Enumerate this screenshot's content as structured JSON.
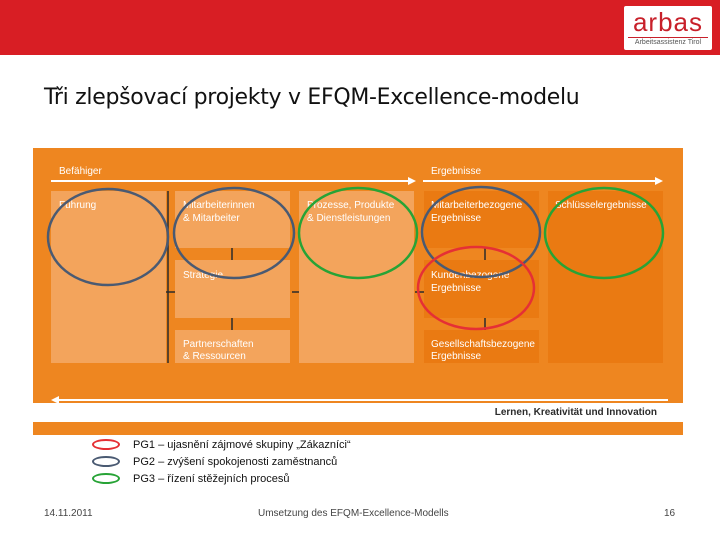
{
  "header": {
    "logo_text": "arbas",
    "logo_subtext": "Arbeitsassistenz Tirol",
    "brand_color": "#d81e24"
  },
  "slide": {
    "title": "Tři zlepšovací projekty v EFQM-Excellence-modelu"
  },
  "model": {
    "enablers_label": "Befähiger",
    "results_label": "Ergebnisse",
    "learning_label": "Lernen, Kreativität und Innovation",
    "boxes": {
      "fuhrung": "Führung",
      "mitarbeiter": [
        "Mitarbeiterinnen",
        "& Mitarbeiter"
      ],
      "strategie": "Strategie",
      "partnerschaften": [
        "Partnerschaften",
        "& Ressourcen"
      ],
      "prozesse": [
        "Prozesse, Produkte",
        "& Dienstleistungen"
      ],
      "mitarbeiter_ergebnisse": [
        "Mitarbeiterbezogene",
        "Ergebnisse"
      ],
      "kunden_ergebnisse": [
        "Kundenbezogene",
        "Ergebnisse"
      ],
      "gesellschaft_ergebnisse": [
        "Gesellschaftsbezogene",
        "Ergebnisse"
      ],
      "schluessel": "Schlüsselergebnisse"
    },
    "colors": {
      "frame": "#ee8620",
      "enabler_box": "#f3a45c",
      "result_box": "#ea7a12"
    }
  },
  "legend": [
    {
      "text": "PG1 – ujasnění  zájmové skupiny „Zákazníci“",
      "color": "#e53035"
    },
    {
      "text": "PG2 – zvýšení spokojenosti zaměstnanců",
      "color": "#4a5a72"
    },
    {
      "text": "PG3 – řízení stěžejních procesů",
      "color": "#27a336"
    }
  ],
  "footer": {
    "date": "14.11.2011",
    "center": "Umsetzung des EFQM-Excellence-Modells",
    "page": "16"
  }
}
